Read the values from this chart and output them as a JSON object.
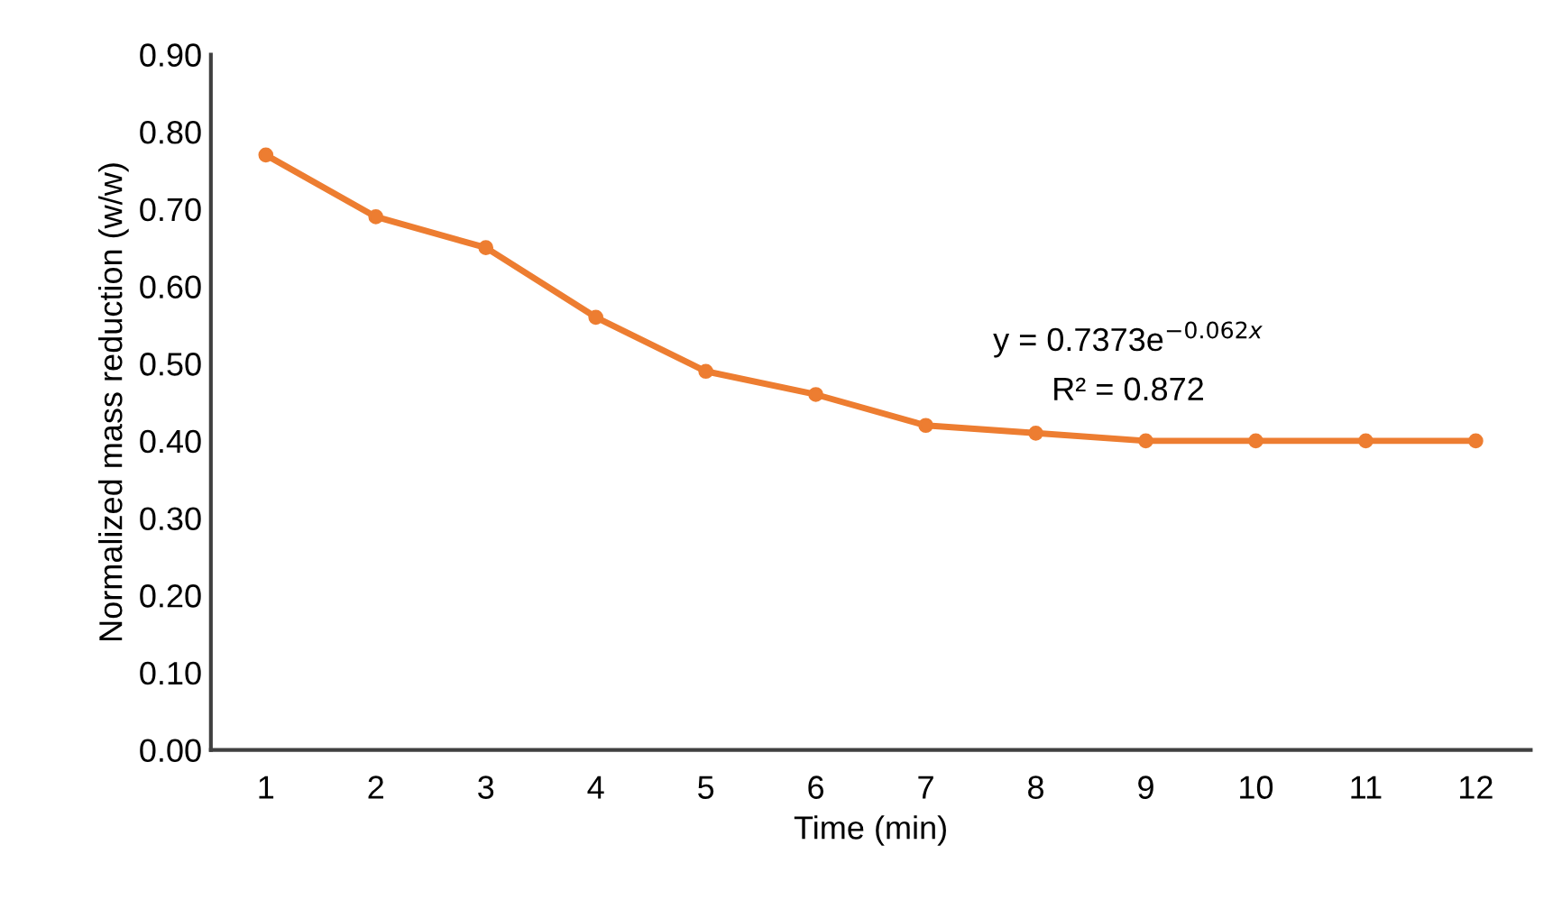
{
  "chart_data": {
    "type": "line",
    "xlabel": "Time (min)",
    "ylabel": "Normalized mass reduction (w/w)",
    "categories": [
      "1",
      "2",
      "3",
      "4",
      "5",
      "6",
      "7",
      "8",
      "9",
      "10",
      "11",
      "12"
    ],
    "series": [
      {
        "color": "#ed7d31",
        "values": [
          0.77,
          0.69,
          0.65,
          0.56,
          0.49,
          0.46,
          0.42,
          0.41,
          0.4,
          0.4,
          0.4,
          0.4
        ]
      }
    ],
    "ylim": [
      0,
      0.9
    ],
    "yticks": [
      {
        "value": 0,
        "label": "0.00"
      },
      {
        "value": 0.1,
        "label": "0.10"
      },
      {
        "value": 0.2,
        "label": "0.20"
      },
      {
        "value": 0.3,
        "label": "0.30"
      },
      {
        "value": 0.4,
        "label": "0.40"
      },
      {
        "value": 0.5,
        "label": "0.50"
      },
      {
        "value": 0.6,
        "label": "0.60"
      },
      {
        "value": 0.7,
        "label": "0.70"
      },
      {
        "value": 0.8,
        "label": "0.80"
      },
      {
        "value": 0.9,
        "label": "0.90"
      }
    ],
    "annotations": [
      "y = 0.7373e$^{−0.062x}$",
      "R² = 0.872"
    ],
    "marker": "circle",
    "line_style": "solid",
    "grid": false,
    "legend": false
  }
}
